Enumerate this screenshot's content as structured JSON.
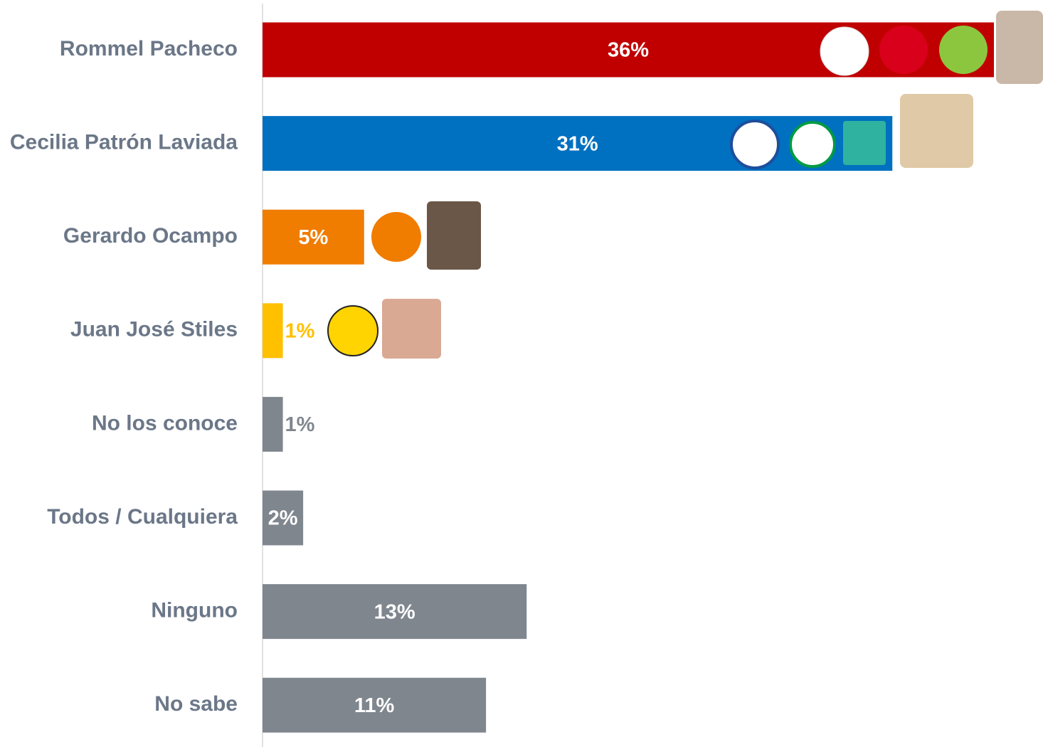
{
  "chart_data": {
    "type": "bar",
    "orientation": "horizontal",
    "categories": [
      "Rommel Pacheco",
      "Cecilia Patrón Laviada",
      "Gerardo Ocampo",
      "Juan José Stiles",
      "No los conoce",
      "Todos / Cualquiera",
      "Ninguno",
      "No sabe"
    ],
    "values": [
      36,
      31,
      5,
      1,
      1,
      2,
      13,
      11
    ],
    "value_labels": [
      "36%",
      "31%",
      "5%",
      "1%",
      "1%",
      "2%",
      "13%",
      "11%"
    ],
    "colors": [
      "#c00000",
      "#0070c0",
      "#f07c00",
      "#ffc000",
      "#7f868e",
      "#7f868e",
      "#7f868e",
      "#7f868e"
    ]
  }
}
